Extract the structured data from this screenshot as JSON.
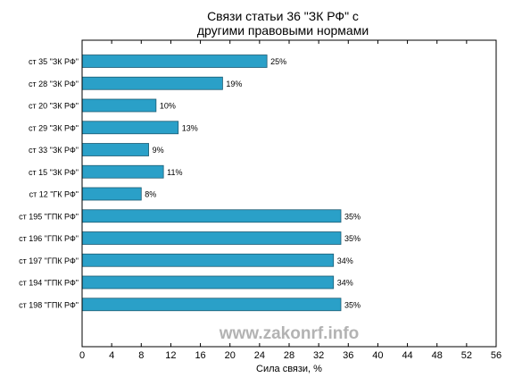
{
  "chart_data": {
    "type": "bar",
    "orientation": "horizontal",
    "title": "Связи статьи 36 \"ЗК РФ\" с\nдругими правовыми нормами",
    "xlabel": "Сила связи, %",
    "ylabel": "",
    "xlim": [
      0,
      56
    ],
    "xticks": [
      0,
      4,
      8,
      12,
      16,
      20,
      24,
      28,
      32,
      36,
      40,
      44,
      48,
      52,
      56
    ],
    "grid": false,
    "categories": [
      "ст 35 \"ЗК РФ\"",
      "ст 28 \"ЗК РФ\"",
      "ст 20 \"ЗК РФ\"",
      "ст 29 \"ЗК РФ\"",
      "ст 33 \"ЗК РФ\"",
      "ст 15 \"ЗК РФ\"",
      "ст 12 \"ГК РФ\"",
      "ст 195 \"ГПК РФ\"",
      "ст 196 \"ГПК РФ\"",
      "ст 197 \"ГПК РФ\"",
      "ст 194 \"ГПК РФ\"",
      "ст 198 \"ГПК РФ\""
    ],
    "values": [
      25,
      19,
      10,
      13,
      9,
      11,
      8,
      35,
      35,
      34,
      34,
      35
    ],
    "value_labels": [
      "25%",
      "19%",
      "10%",
      "13%",
      "9%",
      "11%",
      "8%",
      "35%",
      "35%",
      "34%",
      "34%",
      "35%"
    ],
    "colors": {
      "bar": "#2aa0c8",
      "bar_edge": "#1d5c73"
    }
  },
  "watermark": "www.zakonrf.info"
}
